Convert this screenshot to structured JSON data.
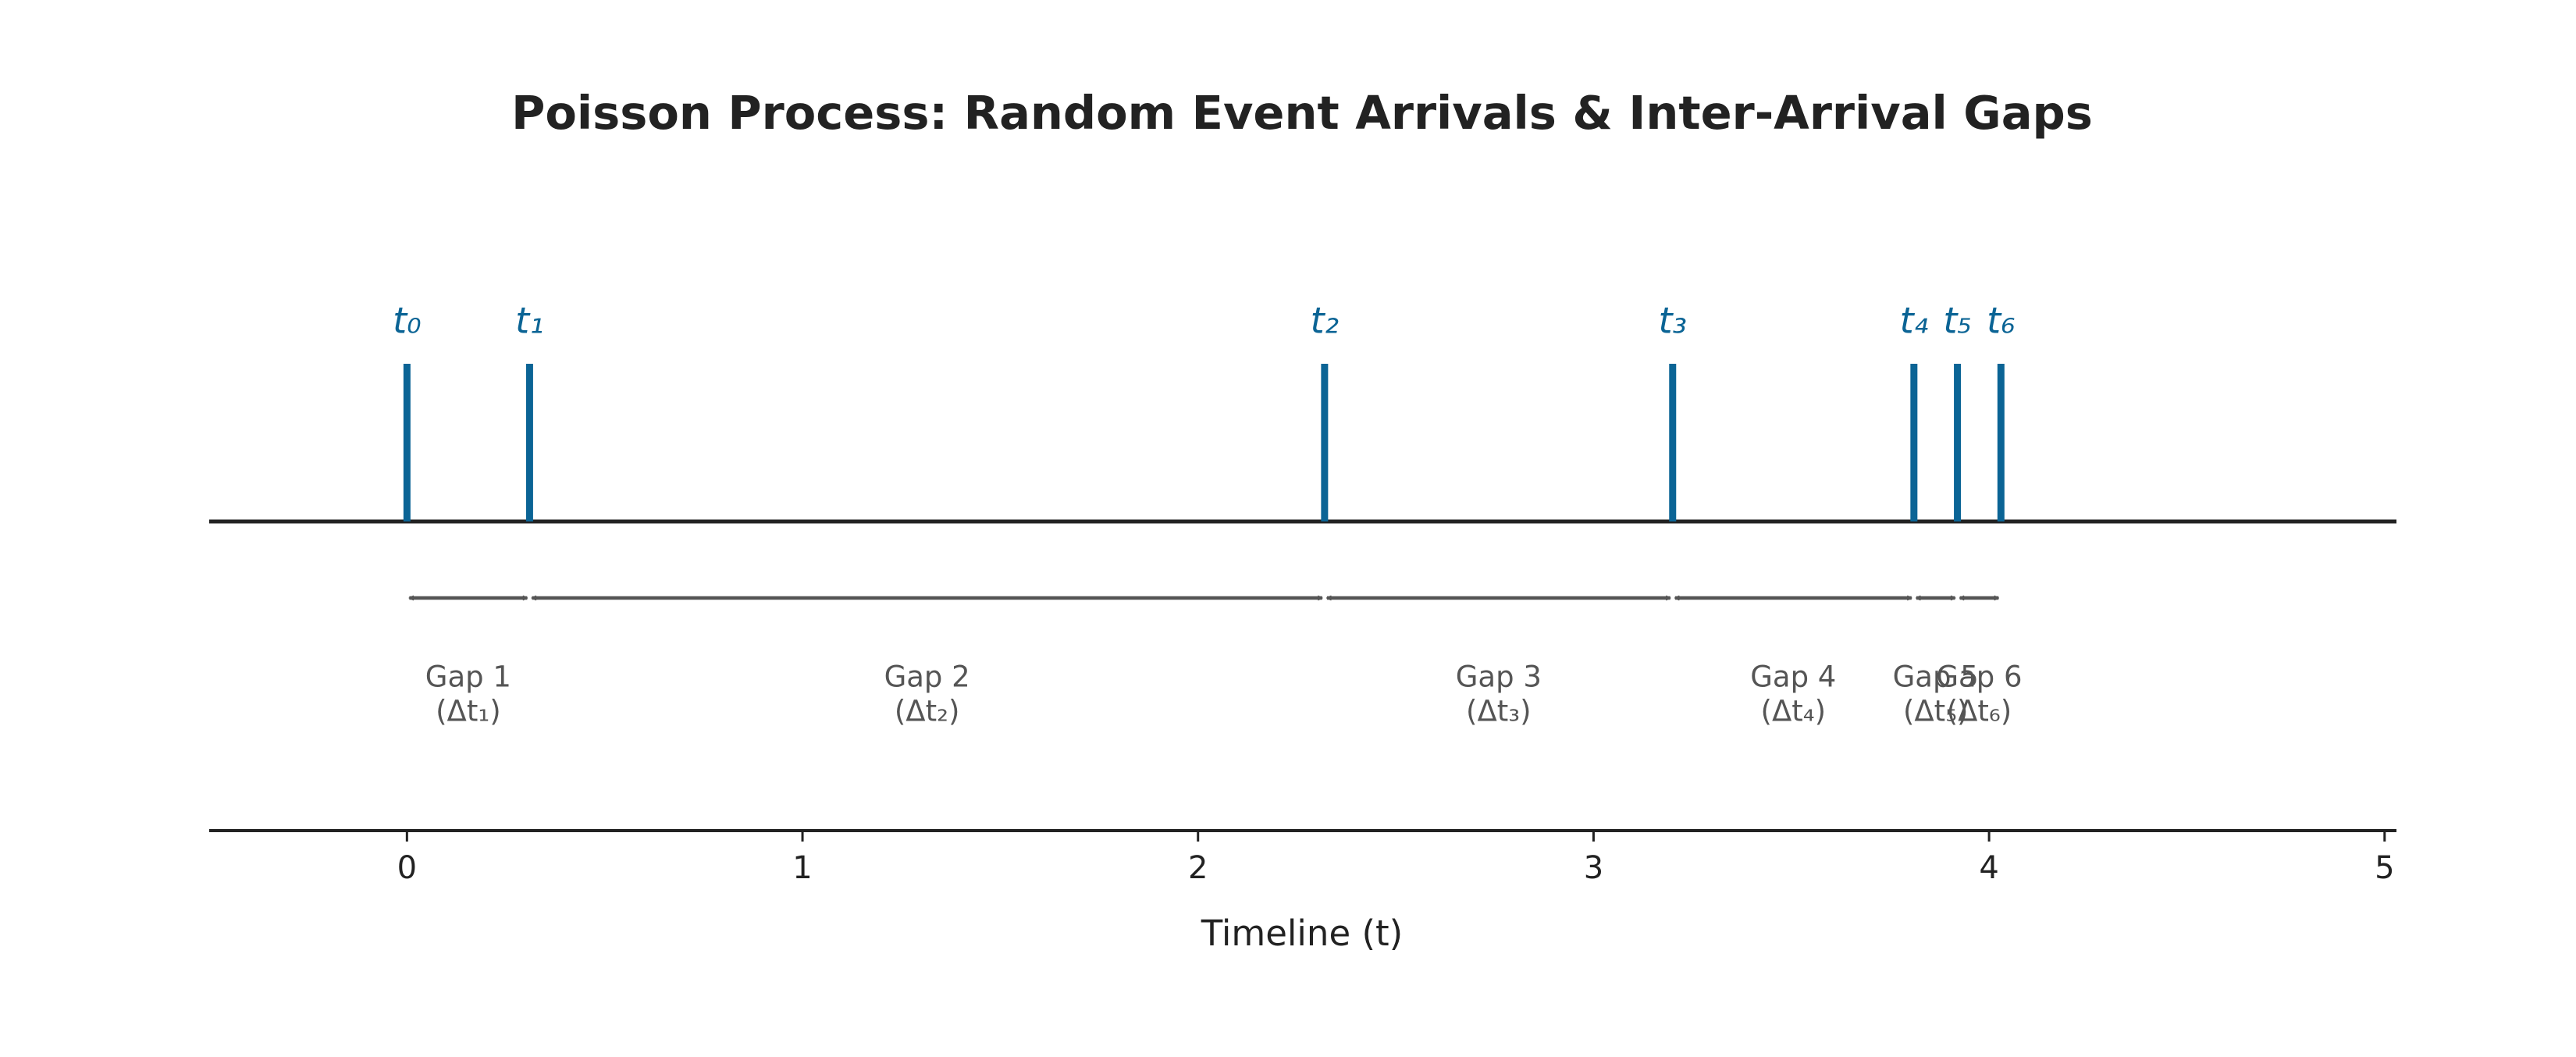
{
  "chart_data": {
    "type": "timeline",
    "title": "Poisson Process: Random Event Arrivals & Inter-Arrival Gaps",
    "x_label": "Timeline (t)",
    "events": [
      0,
      0.31,
      2.32,
      3.2,
      3.81,
      3.92,
      4.03
    ],
    "event_labels": [
      "t₀",
      "t₁",
      "t₂",
      "t₃",
      "t₄",
      "t₅",
      "t₆"
    ],
    "gap_labels": [
      "Gap 1",
      "Gap 2",
      "Gap 3",
      "Gap 4",
      "Gap 5",
      "Gap 6"
    ],
    "gap_symbols": [
      "(Δt₁)",
      "(Δt₂)",
      "(Δt₃)",
      "(Δt₄)",
      "(Δt₅)",
      "(Δt₆)"
    ],
    "event_color": "#0b6495",
    "gap_color": "#555555",
    "xlim": [
      -0.5,
      5.03
    ],
    "xticks": [
      0,
      1,
      2,
      3,
      4,
      5
    ]
  }
}
